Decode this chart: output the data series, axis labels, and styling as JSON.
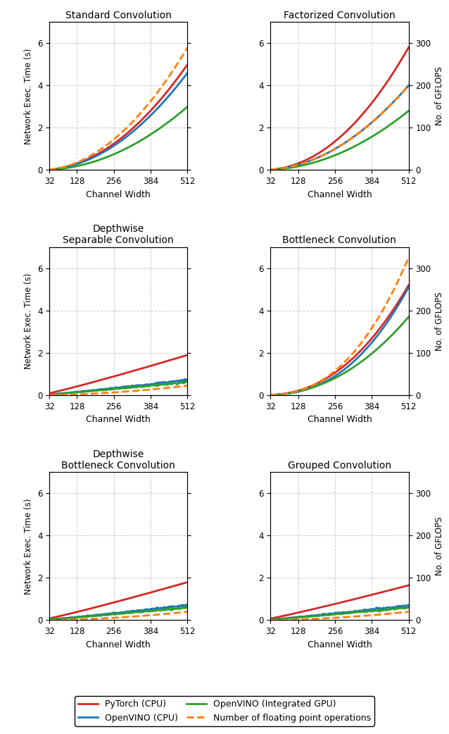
{
  "titles": [
    "Standard Convolution",
    "Factorized Convolution",
    "Depthwise\nSeparable Convolution",
    "Bottleneck Convolution",
    "Depthwise\nBottleneck Convolution",
    "Grouped Convolution"
  ],
  "xticks": [
    32,
    128,
    256,
    384,
    512
  ],
  "ylim_left": [
    0,
    7
  ],
  "ylim_right": [
    0,
    350
  ],
  "yticks_left": [
    0,
    2,
    4,
    6
  ],
  "yticks_right": [
    0,
    100,
    200,
    300
  ],
  "ylabel_left": "Network Exec. Time (s)",
  "ylabel_right": "No. of GFLOPS",
  "xlabel": "Channel Width",
  "color_pytorch": "#d62728",
  "color_openvino_cpu": "#1f77b4",
  "color_openvino_gpu": "#2ca02c",
  "color_flops": "#ff7f0e",
  "legend_labels": [
    "PyTorch (CPU)",
    "OpenVINO (CPU)",
    "OpenVINO (Integrated GPU)",
    "Number of floating point operations"
  ]
}
